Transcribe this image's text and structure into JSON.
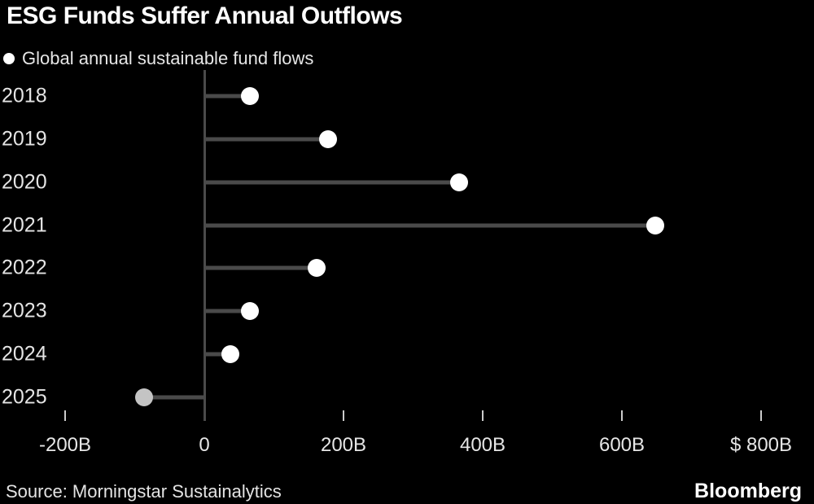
{
  "title": "ESG Funds Suffer Annual Outflows",
  "legend": {
    "marker_icon": "circle-dot-icon",
    "label": "Global annual sustainable fund flows"
  },
  "source": "Source: Morningstar Sustainalytics",
  "brand": "Bloomberg",
  "colors": {
    "background": "#000000",
    "title": "#ffffff",
    "text": "#e4e4e4",
    "stem": "#4a4a4a",
    "axis": "#4a4a4a",
    "tick": "#cccccc",
    "dot": "#ffffff",
    "dot_muted": "#c4c4c4"
  },
  "chart_data": {
    "type": "bar",
    "subtype": "horizontal-lollipop",
    "title": "ESG Funds Suffer Annual Outflows",
    "series_label": "Global annual sustainable fund flows",
    "categories": [
      "2018",
      "2019",
      "2020",
      "2021",
      "2022",
      "2023",
      "2024",
      "2025"
    ],
    "values": [
      66,
      178,
      366,
      648,
      161,
      66,
      37,
      -86
    ],
    "unit": "billions USD",
    "point_colors": [
      "#ffffff",
      "#ffffff",
      "#ffffff",
      "#ffffff",
      "#ffffff",
      "#ffffff",
      "#ffffff",
      "#c4c4c4"
    ],
    "xlabel": "",
    "ylabel": "",
    "xlim": [
      -250,
      875
    ],
    "ticks": {
      "values": [
        -200,
        0,
        200,
        400,
        600,
        800
      ],
      "labels": [
        "-200B",
        "0",
        "200B",
        "400B",
        "600B",
        "$ 800B"
      ]
    },
    "grid": "off",
    "legend_position": "top-left",
    "note": "2025 point shown muted gray (partial year, negative flow)"
  }
}
